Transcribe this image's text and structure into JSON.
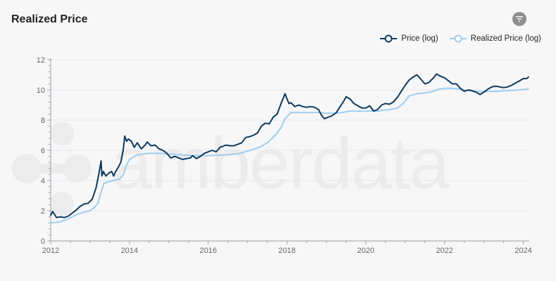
{
  "title": "Realized Price",
  "watermark": "amberdata",
  "icons": {
    "filter": "filter-icon"
  },
  "colors": {
    "price": "#0c3a5e",
    "realized": "#9fcdf0",
    "grid": "#e1e7f0",
    "axis": "#9aa0a8",
    "watermark": "#ececec"
  },
  "chart_data": {
    "type": "line",
    "title": "Realized Price",
    "xlabel": "",
    "ylabel": "",
    "xlim": [
      2012.0,
      2024.15
    ],
    "ylim": [
      0,
      12
    ],
    "x_ticks": [
      "2012",
      "2014",
      "2016",
      "2018",
      "2020",
      "2022",
      "2024"
    ],
    "y_ticks": [
      "0",
      "2",
      "4",
      "6",
      "8",
      "10",
      "12"
    ],
    "grid": true,
    "legend_position": "top-right",
    "series": [
      {
        "name": "Price (log)",
        "color": "#0c3a5e",
        "marker": "hollow-circle",
        "x": [
          2012.0,
          2012.05,
          2012.1,
          2012.15,
          2012.25,
          2012.35,
          2012.45,
          2012.55,
          2012.65,
          2012.75,
          2012.85,
          2012.95,
          2013.05,
          2013.15,
          2013.22,
          2013.28,
          2013.3,
          2013.34,
          2013.4,
          2013.48,
          2013.55,
          2013.6,
          2013.65,
          2013.72,
          2013.78,
          2013.84,
          2013.88,
          2013.93,
          2013.97,
          2014.05,
          2014.12,
          2014.2,
          2014.3,
          2014.4,
          2014.45,
          2014.55,
          2014.65,
          2014.75,
          2014.85,
          2014.95,
          2015.05,
          2015.15,
          2015.25,
          2015.35,
          2015.45,
          2015.55,
          2015.6,
          2015.7,
          2015.8,
          2015.9,
          2016.0,
          2016.1,
          2016.2,
          2016.3,
          2016.45,
          2016.55,
          2016.65,
          2016.75,
          2016.85,
          2016.95,
          2017.05,
          2017.15,
          2017.25,
          2017.35,
          2017.45,
          2017.55,
          2017.65,
          2017.75,
          2017.82,
          2017.88,
          2017.95,
          2018.0,
          2018.05,
          2018.1,
          2018.2,
          2018.3,
          2018.4,
          2018.5,
          2018.6,
          2018.7,
          2018.8,
          2018.88,
          2018.95,
          2019.05,
          2019.15,
          2019.25,
          2019.35,
          2019.45,
          2019.5,
          2019.6,
          2019.7,
          2019.8,
          2019.9,
          2020.0,
          2020.1,
          2020.2,
          2020.3,
          2020.4,
          2020.5,
          2020.6,
          2020.7,
          2020.8,
          2020.9,
          2021.0,
          2021.1,
          2021.2,
          2021.3,
          2021.4,
          2021.5,
          2021.6,
          2021.7,
          2021.8,
          2021.9,
          2022.0,
          2022.1,
          2022.2,
          2022.3,
          2022.4,
          2022.5,
          2022.6,
          2022.7,
          2022.8,
          2022.9,
          2023.0,
          2023.1,
          2023.2,
          2023.3,
          2023.4,
          2023.5,
          2023.6,
          2023.7,
          2023.8,
          2023.9,
          2024.0,
          2024.08,
          2024.13
        ],
        "y": [
          1.7,
          1.95,
          1.75,
          1.55,
          1.6,
          1.55,
          1.65,
          1.85,
          2.05,
          2.3,
          2.45,
          2.5,
          2.75,
          3.5,
          4.4,
          5.3,
          4.3,
          4.6,
          4.3,
          4.5,
          4.6,
          4.3,
          4.6,
          4.9,
          5.2,
          6.0,
          6.95,
          6.6,
          6.75,
          6.6,
          6.2,
          6.5,
          6.1,
          6.35,
          6.55,
          6.3,
          6.35,
          6.1,
          6.0,
          5.8,
          5.5,
          5.6,
          5.5,
          5.4,
          5.45,
          5.5,
          5.65,
          5.45,
          5.6,
          5.8,
          5.9,
          6.0,
          5.9,
          6.2,
          6.35,
          6.3,
          6.3,
          6.4,
          6.5,
          6.85,
          6.9,
          7.0,
          7.15,
          7.6,
          7.8,
          7.75,
          8.2,
          8.4,
          8.9,
          9.3,
          9.75,
          9.4,
          9.1,
          9.15,
          8.9,
          9.0,
          8.9,
          8.85,
          8.9,
          8.85,
          8.7,
          8.3,
          8.1,
          8.2,
          8.3,
          8.5,
          8.9,
          9.3,
          9.55,
          9.4,
          9.1,
          8.95,
          8.8,
          8.8,
          8.95,
          8.6,
          8.7,
          9.0,
          9.1,
          9.05,
          9.2,
          9.5,
          9.9,
          10.3,
          10.65,
          10.85,
          11.0,
          10.7,
          10.4,
          10.5,
          10.75,
          11.05,
          10.9,
          10.8,
          10.6,
          10.4,
          10.4,
          10.1,
          9.9,
          10.0,
          9.95,
          9.85,
          9.7,
          9.85,
          10.05,
          10.2,
          10.25,
          10.2,
          10.15,
          10.2,
          10.3,
          10.45,
          10.6,
          10.75,
          10.75,
          10.85
        ]
      },
      {
        "name": "Realized Price (log)",
        "color": "#9fcdf0",
        "marker": "hollow-circle",
        "x": [
          2012.0,
          2012.2,
          2012.4,
          2012.55,
          2012.7,
          2012.85,
          2013.0,
          2013.1,
          2013.2,
          2013.25,
          2013.3,
          2013.35,
          2013.45,
          2013.6,
          2013.75,
          2013.85,
          2013.92,
          2014.0,
          2014.2,
          2014.5,
          2014.8,
          2015.0,
          2015.3,
          2015.6,
          2016.0,
          2016.5,
          2016.8,
          2017.0,
          2017.3,
          2017.5,
          2017.7,
          2017.85,
          2017.95,
          2018.1,
          2018.4,
          2018.8,
          2019.0,
          2019.2,
          2019.4,
          2019.6,
          2020.0,
          2020.3,
          2020.6,
          2020.8,
          2020.95,
          2021.1,
          2021.3,
          2021.5,
          2021.7,
          2021.85,
          2022.0,
          2022.2,
          2022.4,
          2022.6,
          2022.8,
          2023.0,
          2023.3,
          2023.6,
          2023.9,
          2024.13
        ],
        "y": [
          1.2,
          1.25,
          1.4,
          1.6,
          1.8,
          1.9,
          2.0,
          2.2,
          2.5,
          3.0,
          3.4,
          3.8,
          3.9,
          4.0,
          4.1,
          4.4,
          5.0,
          5.4,
          5.7,
          5.8,
          5.8,
          5.75,
          5.7,
          5.65,
          5.65,
          5.7,
          5.8,
          5.95,
          6.2,
          6.5,
          7.0,
          7.5,
          8.1,
          8.5,
          8.5,
          8.5,
          8.45,
          8.45,
          8.5,
          8.6,
          8.6,
          8.6,
          8.7,
          8.8,
          9.1,
          9.6,
          9.75,
          9.8,
          9.9,
          10.05,
          10.1,
          10.1,
          10.05,
          9.95,
          9.9,
          9.9,
          9.9,
          9.95,
          10.0,
          10.05
        ]
      }
    ]
  }
}
